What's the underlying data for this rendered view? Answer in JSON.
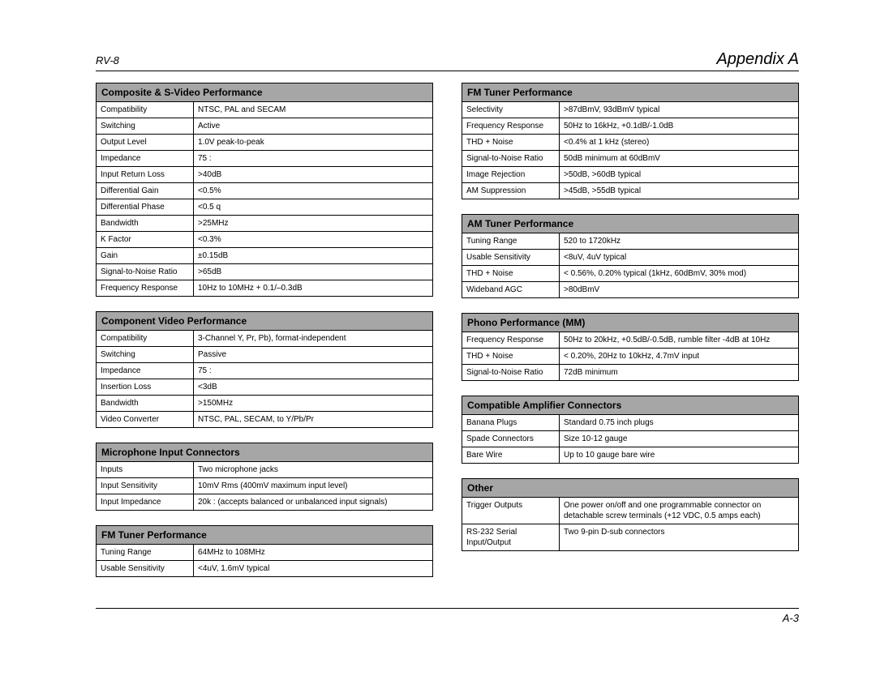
{
  "header": {
    "model": "RV-8",
    "appendix": "Appendix A"
  },
  "footer": {
    "page": "A-3"
  },
  "left_column": [
    {
      "title": "Composite & S-Video Performance",
      "rows": [
        [
          "Compatibility",
          "NTSC, PAL and SECAM"
        ],
        [
          "Switching",
          "Active"
        ],
        [
          "Output Level",
          "1.0V peak-to-peak"
        ],
        [
          "Impedance",
          "75 :"
        ],
        [
          "Input Return Loss",
          ">40dB"
        ],
        [
          "Differential Gain",
          "<0.5%"
        ],
        [
          "Differential Phase",
          "<0.5 q"
        ],
        [
          "Bandwidth",
          ">25MHz"
        ],
        [
          "K Factor",
          "<0.3%"
        ],
        [
          "Gain",
          "±0.15dB"
        ],
        [
          "Signal-to-Noise Ratio",
          ">65dB"
        ],
        [
          "Frequency Response",
          "10Hz to 10MHz + 0.1/–0.3dB"
        ]
      ]
    },
    {
      "title": "Component Video Performance",
      "rows": [
        [
          "Compatibility",
          "3-Channel Y, Pr, Pb), format-independent"
        ],
        [
          "Switching",
          "Passive"
        ],
        [
          "Impedance",
          "75 :"
        ],
        [
          "Insertion Loss",
          "<3dB"
        ],
        [
          "Bandwidth",
          ">150MHz"
        ],
        [
          "Video Converter",
          "NTSC, PAL, SECAM, to Y/Pb/Pr"
        ]
      ]
    },
    {
      "title": "Microphone Input Connectors",
      "rows": [
        [
          "Inputs",
          "Two microphone jacks"
        ],
        [
          "Input Sensitivity",
          "10mV Rms (400mV maximum input level)"
        ],
        [
          "Input Impedance",
          "20k : (accepts balanced or unbalanced input signals)"
        ]
      ]
    },
    {
      "title": "FM Tuner Performance",
      "rows": [
        [
          "Tuning Range",
          "64MHz to 108MHz"
        ],
        [
          "Usable Sensitivity",
          "<4uV, 1.6mV typical"
        ]
      ]
    }
  ],
  "right_column": [
    {
      "title": "FM Tuner Performance",
      "rows": [
        [
          "Selectivity",
          ">87dBmV, 93dBmV typical"
        ],
        [
          "Frequency Response",
          "50Hz to 16kHz, +0.1dB/-1.0dB"
        ],
        [
          "THD + Noise",
          "<0.4% at 1 kHz (stereo)"
        ],
        [
          "Signal-to-Noise Ratio",
          "50dB minimum at 60dBmV"
        ],
        [
          "Image Rejection",
          ">50dB, >60dB typical"
        ],
        [
          "AM Suppression",
          ">45dB, >55dB typical"
        ]
      ]
    },
    {
      "title": "AM Tuner Performance",
      "rows": [
        [
          "Tuning Range",
          "520 to 1720kHz"
        ],
        [
          "Usable Sensitivity",
          "<8uV, 4uV typical"
        ],
        [
          "THD + Noise",
          "< 0.56%, 0.20% typical (1kHz, 60dBmV, 30% mod)"
        ],
        [
          "Wideband AGC",
          ">80dBmV"
        ]
      ]
    },
    {
      "title": "Phono Performance (MM)",
      "rows": [
        [
          "Frequency Response",
          "50Hz to 20kHz, +0.5dB/-0.5dB, rumble filter -4dB at 10Hz"
        ],
        [
          "THD + Noise",
          "< 0.20%, 20Hz to 10kHz, 4.7mV input"
        ],
        [
          "Signal-to-Noise Ratio",
          "72dB minimum"
        ]
      ]
    },
    {
      "title": "Compatible Amplifier Connectors",
      "rows": [
        [
          "Banana Plugs",
          "Standard 0.75 inch plugs"
        ],
        [
          "Spade Connectors",
          "Size 10-12 gauge"
        ],
        [
          "Bare Wire",
          "Up to 10 gauge bare wire"
        ]
      ]
    },
    {
      "title": "Other",
      "rows": [
        [
          "Trigger Outputs",
          "One power on/off and one programmable connector on detachable screw terminals (+12 VDC, 0.5 amps each)"
        ],
        [
          "RS-232 Serial Input/Output",
          "Two 9-pin D-sub connectors"
        ]
      ]
    }
  ]
}
